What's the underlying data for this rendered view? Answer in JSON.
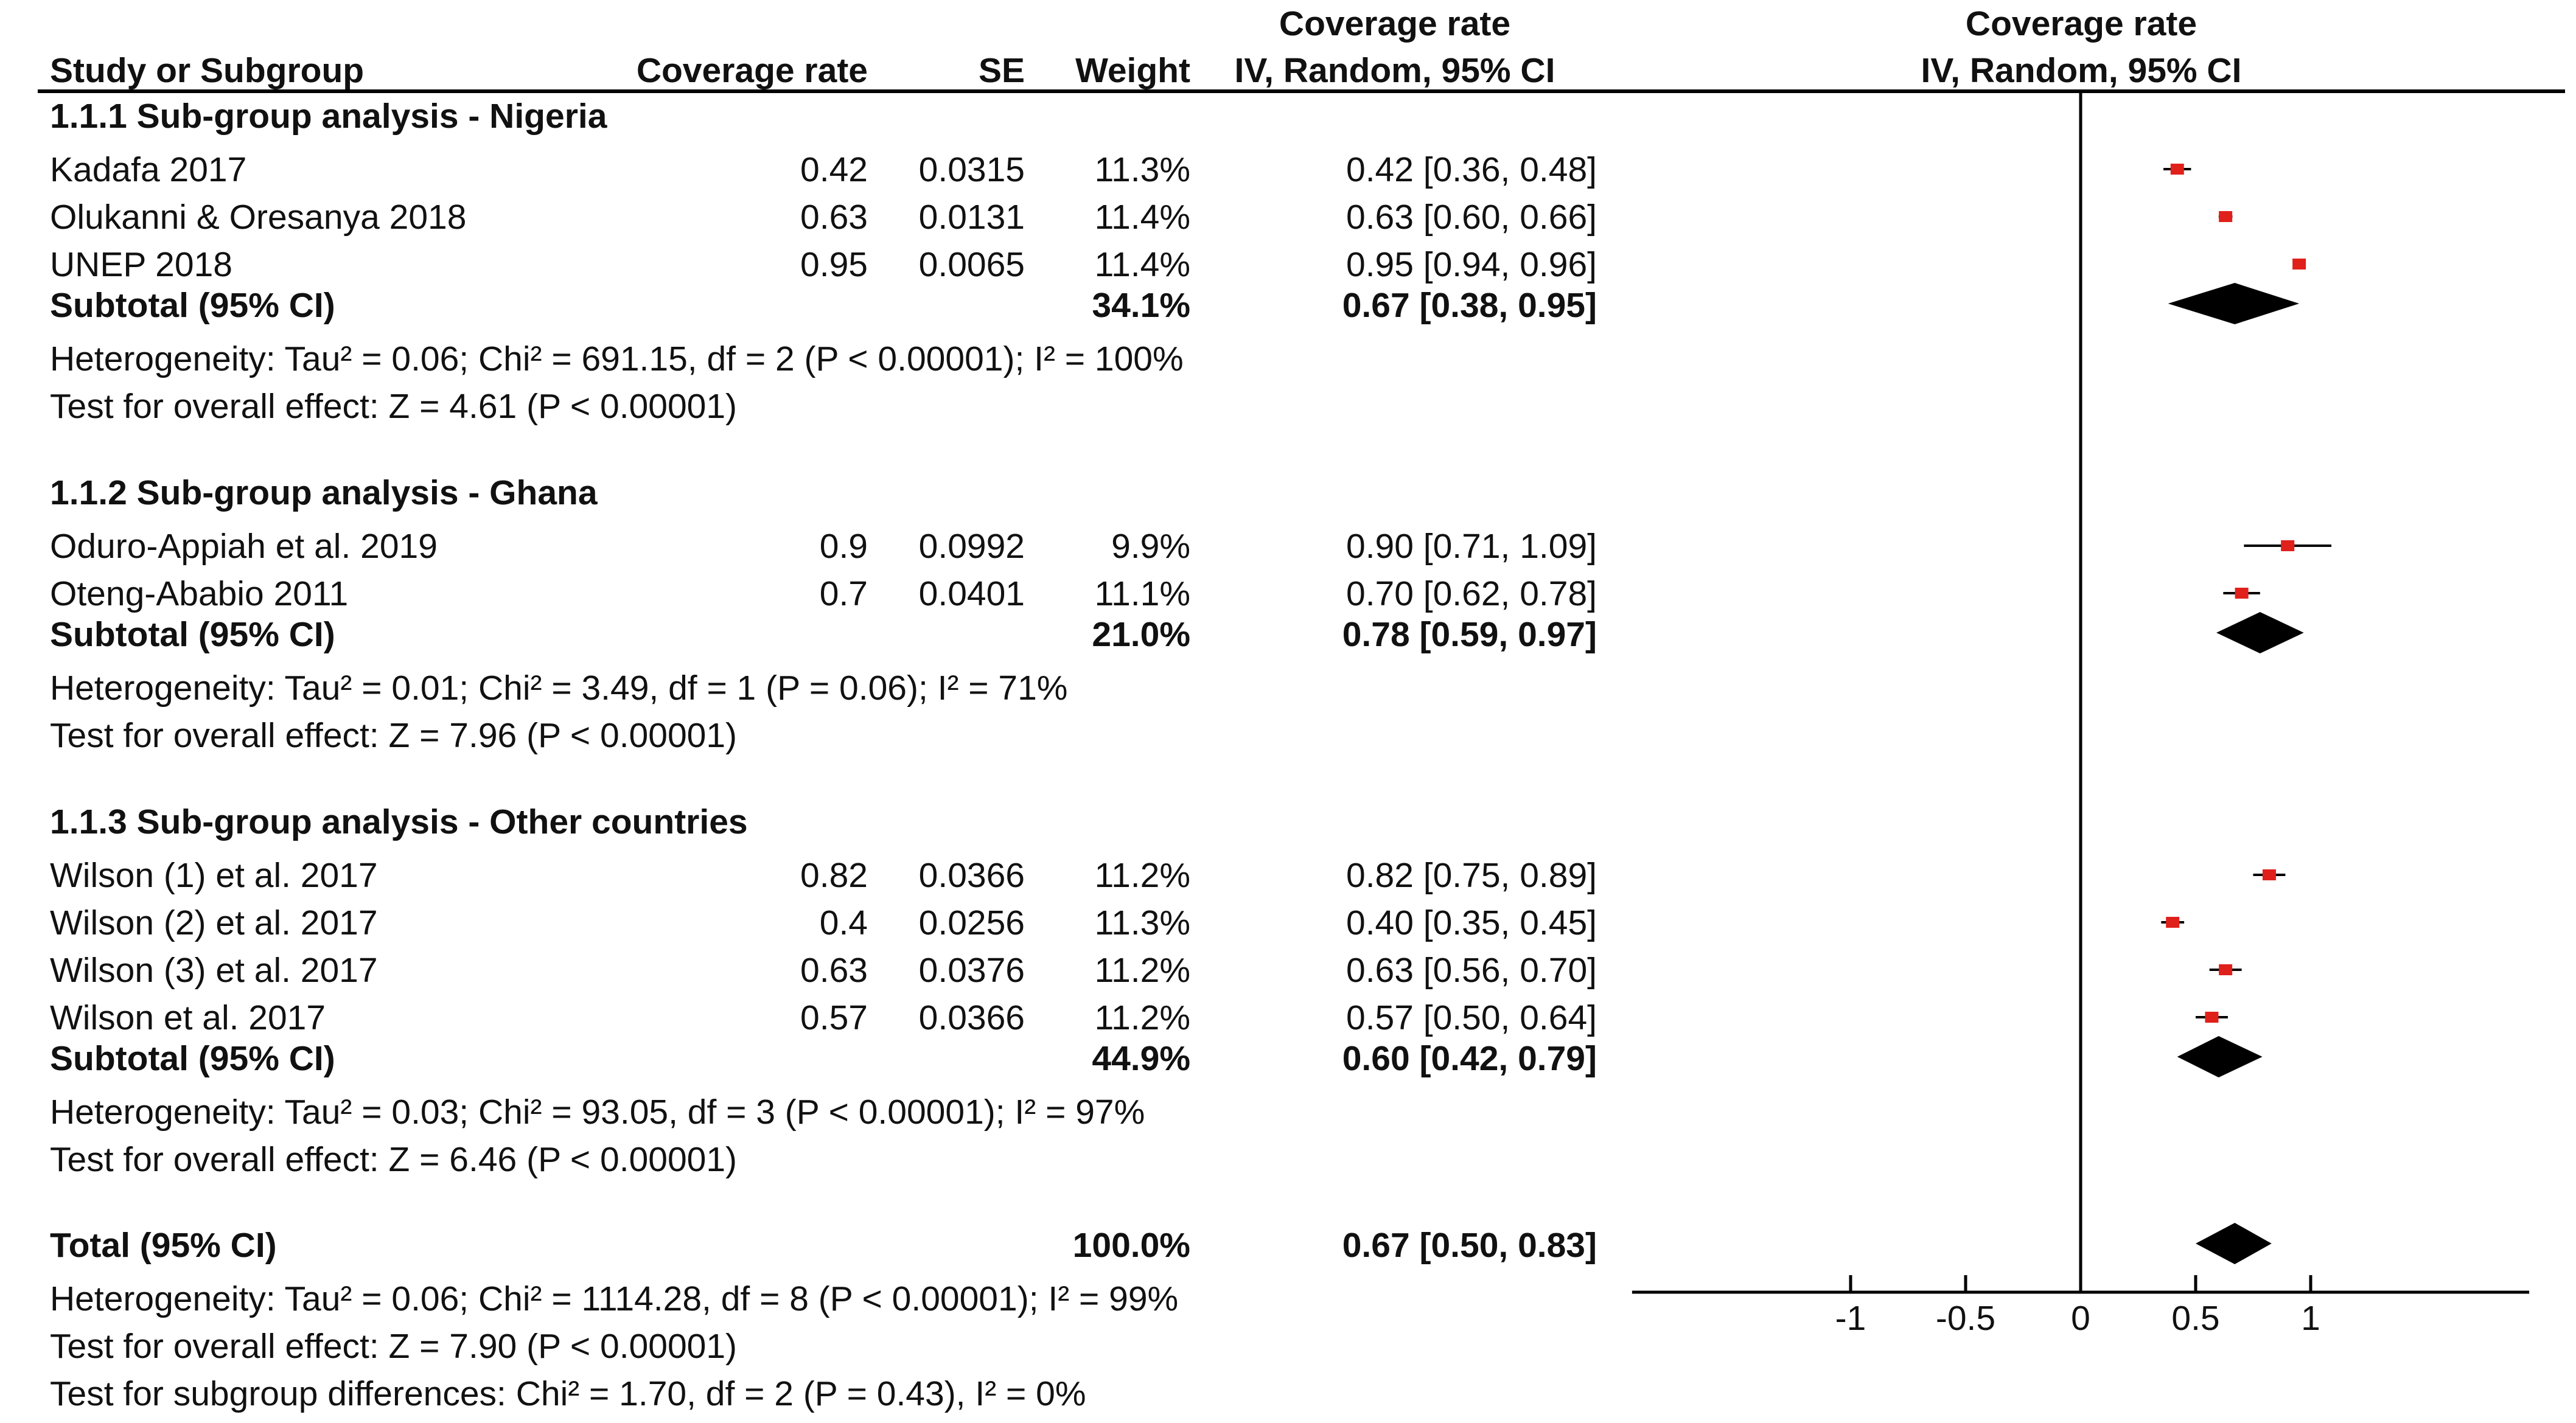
{
  "chart_data": {
    "type": "forest",
    "title": "Coverage rate",
    "method": "IV, Random, 95% CI",
    "columns": {
      "study": "Study or Subgroup",
      "effect": "Coverage rate",
      "se": "SE",
      "weight": "Weight",
      "ci_title": "Coverage rate",
      "ci_method": "IV, Random, 95% CI",
      "plot_title": "Coverage rate",
      "plot_method": "IV, Random, 95% CI"
    },
    "xaxis": {
      "ticks": [
        -1,
        -0.5,
        0,
        0.5,
        1
      ],
      "tick_labels": [
        "-1",
        "-0.5",
        "0",
        "0.5",
        "1"
      ],
      "xlim": [
        -1.95,
        1.95
      ]
    },
    "groups": [
      {
        "title": "1.1.1 Sub-group analysis - Nigeria",
        "studies": [
          {
            "name": "Kadafa 2017",
            "effect": "0.42",
            "se": "0.0315",
            "weight": "11.3%",
            "ci": "0.42 [0.36, 0.48]",
            "est": 0.42,
            "lo": 0.36,
            "hi": 0.48
          },
          {
            "name": "Olukanni & Oresanya 2018",
            "effect": "0.63",
            "se": "0.0131",
            "weight": "11.4%",
            "ci": "0.63 [0.60, 0.66]",
            "est": 0.63,
            "lo": 0.6,
            "hi": 0.66
          },
          {
            "name": "UNEP 2018",
            "effect": "0.95",
            "se": "0.0065",
            "weight": "11.4%",
            "ci": "0.95 [0.94, 0.96]",
            "est": 0.95,
            "lo": 0.94,
            "hi": 0.96
          }
        ],
        "subtotal": {
          "label": "Subtotal (95% CI)",
          "weight": "34.1%",
          "ci": "0.67 [0.38, 0.95]",
          "est": 0.67,
          "lo": 0.38,
          "hi": 0.95
        },
        "heterogeneity": "Heterogeneity: Tau² = 0.06; Chi² = 691.15, df = 2 (P < 0.00001); I² = 100%",
        "overall_effect": "Test for overall effect: Z = 4.61 (P < 0.00001)"
      },
      {
        "title": "1.1.2 Sub-group analysis - Ghana",
        "studies": [
          {
            "name": "Oduro-Appiah et al. 2019",
            "effect": "0.9",
            "se": "0.0992",
            "weight": "9.9%",
            "ci": "0.90 [0.71, 1.09]",
            "est": 0.9,
            "lo": 0.71,
            "hi": 1.09
          },
          {
            "name": "Oteng-Ababio 2011",
            "effect": "0.7",
            "se": "0.0401",
            "weight": "11.1%",
            "ci": "0.70 [0.62, 0.78]",
            "est": 0.7,
            "lo": 0.62,
            "hi": 0.78
          }
        ],
        "subtotal": {
          "label": "Subtotal (95% CI)",
          "weight": "21.0%",
          "ci": "0.78 [0.59, 0.97]",
          "est": 0.78,
          "lo": 0.59,
          "hi": 0.97
        },
        "heterogeneity": "Heterogeneity: Tau² = 0.01; Chi² = 3.49, df = 1 (P = 0.06); I² = 71%",
        "overall_effect": "Test for overall effect: Z = 7.96 (P < 0.00001)"
      },
      {
        "title": "1.1.3 Sub-group analysis - Other countries",
        "studies": [
          {
            "name": "Wilson (1) et al. 2017",
            "effect": "0.82",
            "se": "0.0366",
            "weight": "11.2%",
            "ci": "0.82 [0.75, 0.89]",
            "est": 0.82,
            "lo": 0.75,
            "hi": 0.89
          },
          {
            "name": "Wilson (2) et al. 2017",
            "effect": "0.4",
            "se": "0.0256",
            "weight": "11.3%",
            "ci": "0.40 [0.35, 0.45]",
            "est": 0.4,
            "lo": 0.35,
            "hi": 0.45
          },
          {
            "name": "Wilson (3) et al. 2017",
            "effect": "0.63",
            "se": "0.0376",
            "weight": "11.2%",
            "ci": "0.63 [0.56, 0.70]",
            "est": 0.63,
            "lo": 0.56,
            "hi": 0.7
          },
          {
            "name": "Wilson et al. 2017",
            "effect": "0.57",
            "se": "0.0366",
            "weight": "11.2%",
            "ci": "0.57 [0.50, 0.64]",
            "est": 0.57,
            "lo": 0.5,
            "hi": 0.64
          }
        ],
        "subtotal": {
          "label": "Subtotal (95% CI)",
          "weight": "44.9%",
          "ci": "0.60 [0.42, 0.79]",
          "est": 0.6,
          "lo": 0.42,
          "hi": 0.79
        },
        "heterogeneity": "Heterogeneity: Tau² = 0.03; Chi² = 93.05, df = 3 (P < 0.00001); I² = 97%",
        "overall_effect": "Test for overall effect: Z = 6.46 (P < 0.00001)"
      }
    ],
    "total": {
      "label": "Total (95% CI)",
      "weight": "100.0%",
      "ci": "0.67 [0.50, 0.83]",
      "est": 0.67,
      "lo": 0.5,
      "hi": 0.83,
      "heterogeneity": "Heterogeneity: Tau² = 0.06; Chi² = 1114.28, df = 8 (P < 0.00001); I² = 99%",
      "overall_effect": "Test for overall effect: Z = 7.90 (P < 0.00001)",
      "subgroup_differences": "Test for subgroup differences: Chi² = 1.70, df = 2 (P = 0.43), I² = 0%"
    },
    "colors": {
      "marker": "#e0201b",
      "diamond": "#000000",
      "line": "#000000",
      "text": "#111111"
    }
  }
}
